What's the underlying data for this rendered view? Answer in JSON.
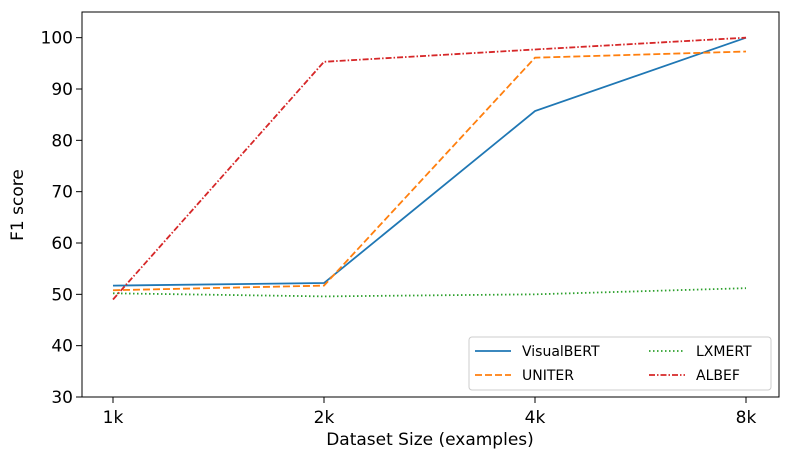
{
  "chart_data": {
    "type": "line",
    "title": "",
    "xlabel": "Dataset Size (examples)",
    "ylabel": "F1 score",
    "categories": [
      "1k",
      "2k",
      "4k",
      "8k"
    ],
    "ylim": [
      30,
      105
    ],
    "yticks": [
      30,
      40,
      50,
      60,
      70,
      80,
      90,
      100
    ],
    "grid": false,
    "legend_position": "lower-right",
    "series": [
      {
        "name": "VisualBERT",
        "values": [
          51.7,
          52.2,
          85.7,
          100.0
        ],
        "color": "#1f77b4",
        "style": "solid"
      },
      {
        "name": "UNITER",
        "values": [
          50.8,
          51.7,
          96.1,
          97.3
        ],
        "color": "#ff7f0e",
        "style": "dashed"
      },
      {
        "name": "LXMERT",
        "values": [
          50.2,
          49.6,
          50.0,
          51.2
        ],
        "color": "#2ca02c",
        "style": "dotted"
      },
      {
        "name": "ALBEF",
        "values": [
          49.0,
          95.3,
          97.7,
          100.0
        ],
        "color": "#d62728",
        "style": "dashdot"
      }
    ]
  }
}
